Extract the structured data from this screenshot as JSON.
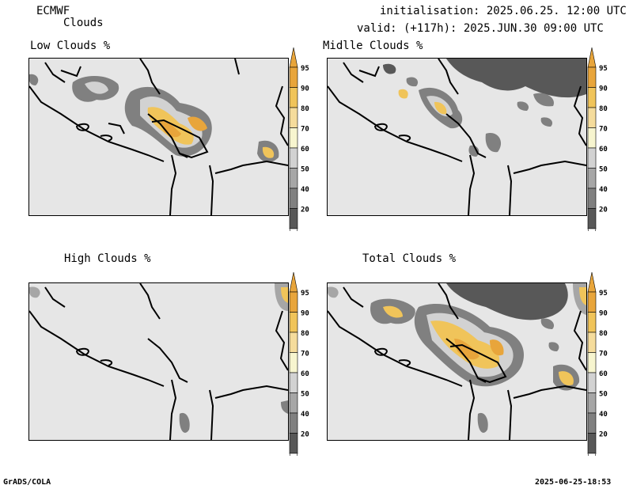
{
  "header": {
    "model": "ECMWF",
    "product": "Clouds",
    "init": "initialisation: 2025.06.25. 12:00 UTC",
    "valid": "valid: (+117h): 2025.JUN.30 09:00 UTC"
  },
  "panels": [
    {
      "title": "Low Clouds %"
    },
    {
      "title": "Midlle Clouds %"
    },
    {
      "title": "High Clouds %"
    },
    {
      "title": "Total Clouds %"
    }
  ],
  "colorbar": {
    "levels": [
      "95",
      "90",
      "80",
      "70",
      "60",
      "50",
      "40",
      "20"
    ],
    "colors": [
      "#e8a53b",
      "#f0c45a",
      "#f5dc9c",
      "#f7f5cf",
      "#d2d2d2",
      "#a6a6a6",
      "#808080",
      "#585858"
    ]
  },
  "footer": {
    "left": "GrADS/COLA",
    "right": "2025-06-25-18:53"
  }
}
